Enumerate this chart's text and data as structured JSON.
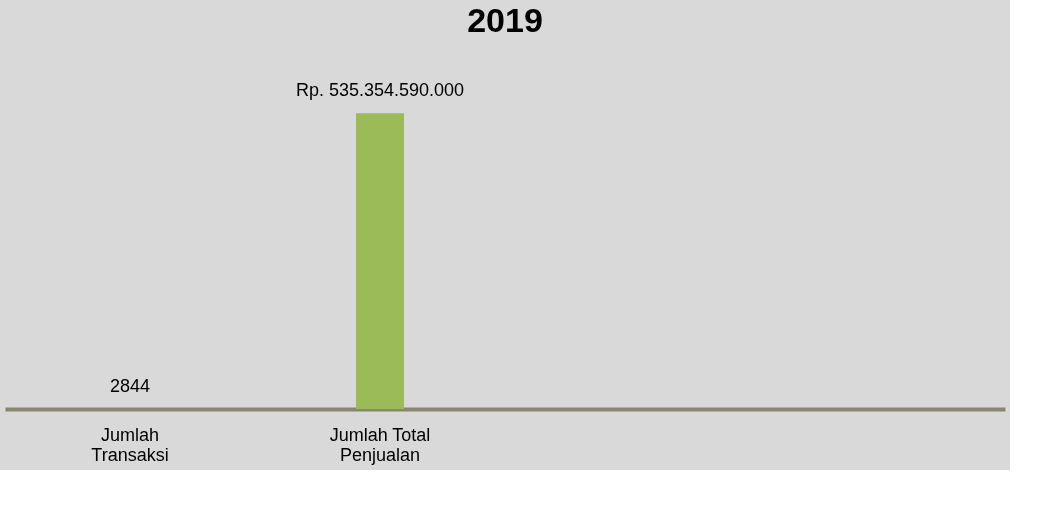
{
  "chart_data": {
    "type": "bar",
    "title": "2019",
    "categories": [
      "Jumlah Transaksi",
      "Jumlah Total Penjualan",
      null,
      null
    ],
    "values": [
      2844,
      535354590000,
      null,
      null
    ],
    "colors": [
      "#c00000",
      "#9bbb59",
      "#9bbb59",
      "#9bbb59"
    ],
    "value_labels": [
      "2844",
      "Rp. 535.354.590.000",
      null,
      null
    ]
  }
}
